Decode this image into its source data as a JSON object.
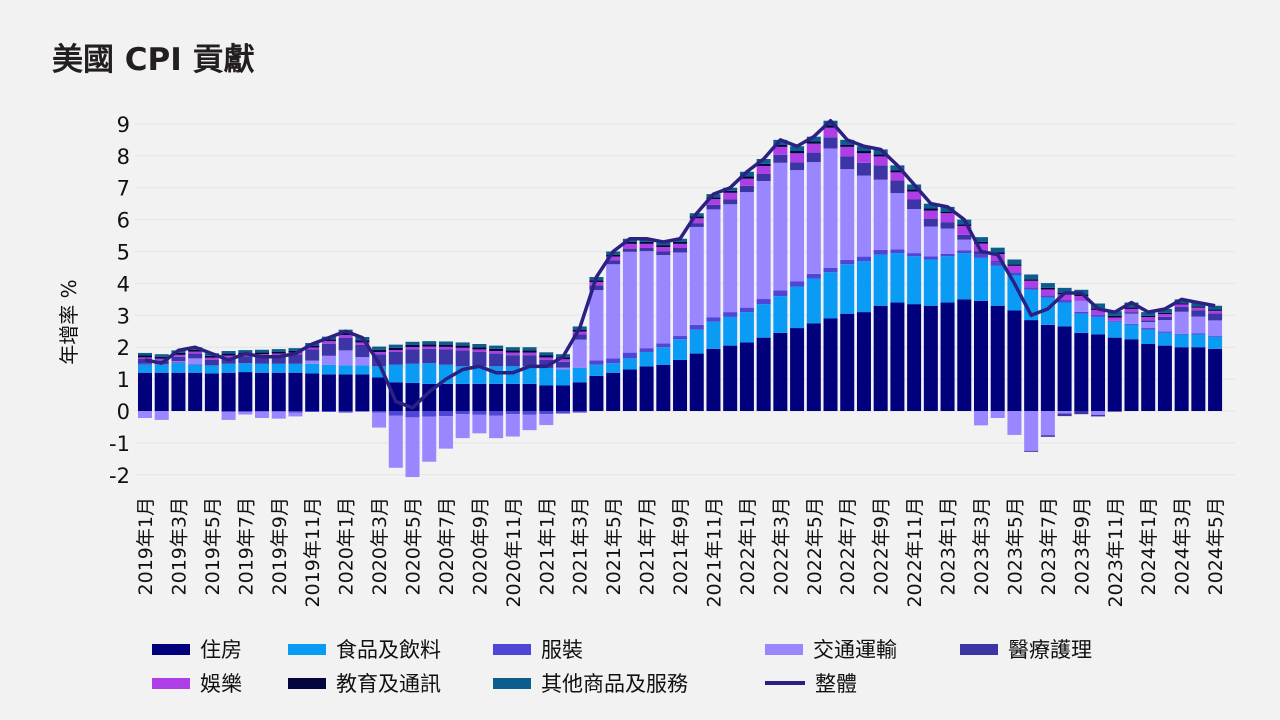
{
  "title": "美國 CPI 貢獻",
  "chart_data": {
    "type": "bar",
    "stacked": true,
    "title": "美國 CPI 貢獻",
    "ylabel": "年增率 %",
    "xlabel": "",
    "ylim": [
      -2.3,
      9.3
    ],
    "yticks": [
      -2,
      -1,
      0,
      1,
      2,
      3,
      4,
      5,
      6,
      7,
      8,
      9
    ],
    "grid": true,
    "legend_position": "bottom",
    "categories": [
      "2019年1月",
      "2019年2月",
      "2019年3月",
      "2019年4月",
      "2019年5月",
      "2019年6月",
      "2019年7月",
      "2019年8月",
      "2019年9月",
      "2019年10月",
      "2019年11月",
      "2019年12月",
      "2020年1月",
      "2020年2月",
      "2020年3月",
      "2020年4月",
      "2020年5月",
      "2020年6月",
      "2020年7月",
      "2020年8月",
      "2020年9月",
      "2020年10月",
      "2020年11月",
      "2020年12月",
      "2021年1月",
      "2021年2月",
      "2021年3月",
      "2021年4月",
      "2021年5月",
      "2021年6月",
      "2021年7月",
      "2021年8月",
      "2021年9月",
      "2021年10月",
      "2021年11月",
      "2021年12月",
      "2022年1月",
      "2022年2月",
      "2022年3月",
      "2022年4月",
      "2022年5月",
      "2022年6月",
      "2022年7月",
      "2022年8月",
      "2022年9月",
      "2022年10月",
      "2022年11月",
      "2022年12月",
      "2023年1月",
      "2023年2月",
      "2023年3月",
      "2023年4月",
      "2023年5月",
      "2023年6月",
      "2023年7月",
      "2023年8月",
      "2023年9月",
      "2023年10月",
      "2023年11月",
      "2023年12月",
      "2024年1月",
      "2024年2月",
      "2024年3月",
      "2024年4月",
      "2024年5月"
    ],
    "series": [
      {
        "name": "住房",
        "color": "#00007c",
        "values": [
          1.2,
          1.2,
          1.2,
          1.2,
          1.18,
          1.2,
          1.22,
          1.2,
          1.2,
          1.2,
          1.18,
          1.15,
          1.15,
          1.15,
          1.05,
          0.9,
          0.88,
          0.85,
          0.85,
          0.85,
          0.85,
          0.85,
          0.85,
          0.85,
          0.8,
          0.8,
          0.9,
          1.1,
          1.2,
          1.3,
          1.4,
          1.45,
          1.6,
          1.8,
          1.95,
          2.05,
          2.15,
          2.3,
          2.45,
          2.6,
          2.75,
          2.9,
          3.05,
          3.1,
          3.3,
          3.4,
          3.35,
          3.3,
          3.4,
          3.5,
          3.45,
          3.3,
          3.15,
          2.85,
          2.7,
          2.65,
          2.45,
          2.4,
          2.3,
          2.25,
          2.1,
          2.05,
          2.0,
          2.0,
          1.95
        ]
      },
      {
        "name": "食品及飲料",
        "color": "#0a9bf5",
        "values": [
          0.25,
          0.25,
          0.3,
          0.25,
          0.25,
          0.28,
          0.28,
          0.28,
          0.28,
          0.28,
          0.3,
          0.3,
          0.28,
          0.28,
          0.35,
          0.55,
          0.6,
          0.65,
          0.6,
          0.55,
          0.55,
          0.55,
          0.55,
          0.55,
          0.55,
          0.5,
          0.45,
          0.35,
          0.3,
          0.35,
          0.45,
          0.55,
          0.65,
          0.75,
          0.85,
          0.9,
          0.95,
          1.05,
          1.15,
          1.3,
          1.4,
          1.45,
          1.55,
          1.6,
          1.6,
          1.55,
          1.5,
          1.45,
          1.45,
          1.45,
          1.35,
          1.25,
          1.1,
          0.95,
          0.85,
          0.75,
          0.6,
          0.55,
          0.5,
          0.45,
          0.45,
          0.4,
          0.4,
          0.4,
          0.38
        ]
      },
      {
        "name": "服裝",
        "color": "#4f45d6",
        "values": [
          0.03,
          0.02,
          0.03,
          0.02,
          0.0,
          -0.03,
          -0.03,
          -0.02,
          -0.02,
          -0.05,
          -0.03,
          -0.03,
          -0.05,
          -0.02,
          -0.05,
          -0.15,
          -0.2,
          -0.18,
          -0.16,
          -0.1,
          -0.12,
          -0.15,
          -0.1,
          -0.12,
          -0.1,
          -0.08,
          -0.05,
          0.14,
          0.15,
          0.18,
          0.12,
          0.12,
          0.1,
          0.15,
          0.14,
          0.15,
          0.14,
          0.16,
          0.18,
          0.16,
          0.15,
          0.14,
          0.14,
          0.14,
          0.15,
          0.12,
          0.1,
          0.1,
          0.08,
          0.09,
          0.1,
          0.1,
          0.1,
          0.08,
          0.08,
          0.08,
          0.06,
          0.07,
          0.03,
          0.03,
          0.05,
          0.04,
          0.02,
          0.03,
          0.03
        ]
      },
      {
        "name": "交通運輸",
        "color": "#9a86ff",
        "values": [
          -0.22,
          -0.28,
          0.03,
          0.18,
          -0.01,
          -0.25,
          -0.08,
          -0.2,
          -0.22,
          -0.12,
          0.1,
          0.28,
          0.47,
          0.26,
          -0.47,
          -1.63,
          -1.87,
          -1.41,
          -1.02,
          -0.75,
          -0.58,
          -0.7,
          -0.7,
          -0.48,
          -0.34,
          0.06,
          0.89,
          2.2,
          2.95,
          3.16,
          3.04,
          2.77,
          2.62,
          3.07,
          3.38,
          3.38,
          3.62,
          3.7,
          4.0,
          3.49,
          3.5,
          3.74,
          2.84,
          2.54,
          2.2,
          1.76,
          1.38,
          0.93,
          0.79,
          0.33,
          -0.45,
          -0.22,
          -0.75,
          -1.25,
          -0.76,
          -0.08,
          0.34,
          -0.12,
          -0.01,
          0.32,
          0.19,
          0.36,
          0.69,
          0.53,
          0.48
        ]
      },
      {
        "name": "醫療護理",
        "color": "#3d35a6",
        "values": [
          0.15,
          0.12,
          0.14,
          0.15,
          0.18,
          0.2,
          0.22,
          0.25,
          0.27,
          0.3,
          0.35,
          0.38,
          0.4,
          0.38,
          0.38,
          0.4,
          0.45,
          0.45,
          0.48,
          0.5,
          0.45,
          0.4,
          0.35,
          0.35,
          0.25,
          0.18,
          0.16,
          0.15,
          0.12,
          0.1,
          0.1,
          0.12,
          0.14,
          0.12,
          0.14,
          0.16,
          0.2,
          0.22,
          0.25,
          0.25,
          0.3,
          0.35,
          0.4,
          0.4,
          0.45,
          0.4,
          0.3,
          0.25,
          0.2,
          0.15,
          0.1,
          0.05,
          0.0,
          -0.03,
          -0.05,
          -0.08,
          -0.1,
          -0.05,
          -0.02,
          0.05,
          0.05,
          0.1,
          0.15,
          0.2,
          0.22
        ]
      },
      {
        "name": "娛樂",
        "color": "#ae3fe6",
        "values": [
          0.05,
          0.05,
          0.06,
          0.06,
          0.06,
          0.06,
          0.05,
          0.05,
          0.05,
          0.05,
          0.06,
          0.08,
          0.08,
          0.08,
          0.07,
          0.06,
          0.07,
          0.07,
          0.08,
          0.08,
          0.08,
          0.08,
          0.08,
          0.08,
          0.08,
          0.08,
          0.09,
          0.1,
          0.12,
          0.15,
          0.13,
          0.13,
          0.13,
          0.15,
          0.18,
          0.2,
          0.22,
          0.25,
          0.25,
          0.28,
          0.28,
          0.3,
          0.3,
          0.3,
          0.28,
          0.25,
          0.25,
          0.25,
          0.28,
          0.28,
          0.25,
          0.22,
          0.2,
          0.2,
          0.18,
          0.18,
          0.15,
          0.15,
          0.1,
          0.1,
          0.1,
          0.09,
          0.08,
          0.08,
          0.08
        ]
      },
      {
        "name": "教育及通訊",
        "color": "#05053d",
        "values": [
          0.06,
          0.06,
          0.06,
          0.06,
          0.06,
          0.06,
          0.06,
          0.06,
          0.06,
          0.06,
          0.06,
          0.06,
          0.07,
          0.07,
          0.07,
          0.07,
          0.07,
          0.07,
          0.07,
          0.07,
          0.07,
          0.07,
          0.07,
          0.07,
          0.06,
          0.06,
          0.06,
          0.06,
          0.06,
          0.06,
          0.06,
          0.06,
          0.06,
          0.06,
          0.06,
          0.06,
          0.07,
          0.07,
          0.07,
          0.07,
          0.07,
          0.07,
          0.07,
          0.07,
          0.07,
          0.07,
          0.07,
          0.07,
          0.05,
          0.05,
          0.05,
          0.05,
          0.05,
          0.05,
          0.05,
          0.05,
          0.05,
          0.05,
          0.05,
          0.05,
          0.04,
          0.04,
          0.04,
          0.04,
          0.04
        ]
      },
      {
        "name": "其他商品及服務",
        "color": "#0b5d8e",
        "values": [
          0.08,
          0.08,
          0.08,
          0.08,
          0.08,
          0.08,
          0.08,
          0.08,
          0.08,
          0.08,
          0.08,
          0.08,
          0.1,
          0.1,
          0.1,
          0.1,
          0.1,
          0.1,
          0.1,
          0.1,
          0.1,
          0.1,
          0.1,
          0.1,
          0.1,
          0.1,
          0.1,
          0.1,
          0.1,
          0.1,
          0.1,
          0.1,
          0.1,
          0.1,
          0.1,
          0.1,
          0.15,
          0.15,
          0.15,
          0.15,
          0.15,
          0.15,
          0.15,
          0.15,
          0.15,
          0.15,
          0.15,
          0.15,
          0.15,
          0.15,
          0.15,
          0.15,
          0.15,
          0.15,
          0.15,
          0.15,
          0.15,
          0.15,
          0.15,
          0.15,
          0.12,
          0.12,
          0.12,
          0.12,
          0.12
        ]
      }
    ],
    "total": {
      "name": "整體",
      "color": "#2b2183",
      "values": [
        1.6,
        1.5,
        1.9,
        2.0,
        1.8,
        1.6,
        1.8,
        1.7,
        1.7,
        1.8,
        2.1,
        2.3,
        2.5,
        2.3,
        1.5,
        0.3,
        0.1,
        0.6,
        1.0,
        1.3,
        1.4,
        1.2,
        1.2,
        1.4,
        1.4,
        1.7,
        2.6,
        4.2,
        5.0,
        5.4,
        5.4,
        5.3,
        5.4,
        6.2,
        6.8,
        7.0,
        7.5,
        7.9,
        8.5,
        8.3,
        8.6,
        9.1,
        8.5,
        8.3,
        8.2,
        7.7,
        7.1,
        6.5,
        6.4,
        6.0,
        5.0,
        4.9,
        4.0,
        3.0,
        3.2,
        3.7,
        3.7,
        3.2,
        3.1,
        3.4,
        3.1,
        3.2,
        3.5,
        3.4,
        3.3
      ]
    }
  }
}
